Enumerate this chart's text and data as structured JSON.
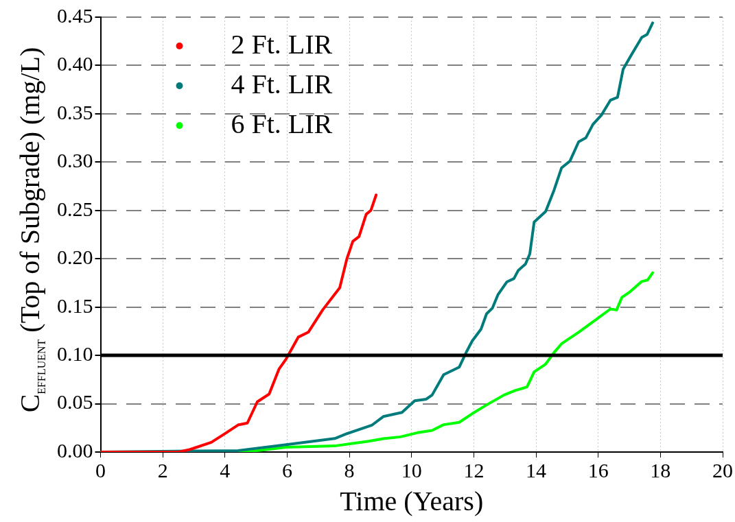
{
  "chart_data": {
    "type": "line",
    "xlabel": "Time (Years)",
    "ylabel": "C$_{EFFLUENT}$ (Top of Subgrade) (mg/L)",
    "xlim": [
      0,
      20
    ],
    "xticks": [
      0,
      2,
      4,
      6,
      8,
      10,
      12,
      14,
      16,
      18,
      20
    ],
    "ylim": [
      0,
      0.45
    ],
    "yticks": [
      {
        "value": 0,
        "label": "0.00"
      },
      {
        "value": 0.05,
        "label": "0.05"
      },
      {
        "value": 0.1,
        "label": "0.10"
      },
      {
        "value": 0.15,
        "label": "0.15"
      },
      {
        "value": 0.2,
        "label": "0.20"
      },
      {
        "value": 0.25,
        "label": "0.25"
      },
      {
        "value": 0.3,
        "label": "0.30"
      },
      {
        "value": 0.35,
        "label": "0.35"
      },
      {
        "value": 0.4,
        "label": "0.40"
      },
      {
        "value": 0.45,
        "label": "0.45"
      }
    ],
    "grid": true,
    "legend": "top left",
    "ref_lines": [
      {
        "axis": "y",
        "value": 0.1,
        "color": "#000000"
      }
    ],
    "series": [
      {
        "name": "2 Ft. LIR",
        "color": "#ff0000",
        "x": [
          0,
          2.5,
          2.86,
          3.56,
          3.95,
          4.42,
          4.72,
          5.04,
          5.42,
          5.74,
          5.97,
          6.36,
          6.68,
          7.14,
          7.69,
          7.92,
          8.11,
          8.31,
          8.54,
          8.69,
          8.86
        ],
        "values": [
          0,
          0,
          0.0025,
          0.01,
          0.018,
          0.028,
          0.03,
          0.052,
          0.06,
          0.086,
          0.0965,
          0.119,
          0.124,
          0.147,
          0.17,
          0.2,
          0.218,
          0.223,
          0.246,
          0.25,
          0.266
        ]
      },
      {
        "name": "4 Ft. LIR",
        "color": "#007b7b",
        "x": [
          0,
          4.42,
          5.97,
          7.53,
          7.92,
          8.72,
          9.09,
          9.69,
          10.1,
          10.47,
          10.66,
          11.03,
          11.53,
          11.77,
          11.95,
          12.23,
          12.41,
          12.6,
          12.78,
          13.06,
          13.29,
          13.43,
          13.66,
          13.8,
          13.94,
          14.31,
          14.58,
          14.82,
          15.09,
          15.37,
          15.6,
          15.83,
          16.11,
          16.39,
          16.62,
          16.8,
          17.03,
          17.4,
          17.57,
          17.75
        ],
        "values": [
          0,
          0.0015,
          0.0076,
          0.014,
          0.019,
          0.0277,
          0.0367,
          0.041,
          0.053,
          0.0547,
          0.059,
          0.08,
          0.0878,
          0.104,
          0.115,
          0.127,
          0.143,
          0.149,
          0.163,
          0.176,
          0.1795,
          0.188,
          0.1945,
          0.205,
          0.238,
          0.249,
          0.271,
          0.294,
          0.301,
          0.321,
          0.325,
          0.339,
          0.349,
          0.364,
          0.367,
          0.396,
          0.409,
          0.429,
          0.432,
          0.444
        ]
      },
      {
        "name": "6 Ft. LIR",
        "color": "#00ff00",
        "x": [
          0,
          4.8,
          5.97,
          7.53,
          8.62,
          9.09,
          9.64,
          10.19,
          10.66,
          11.03,
          11.53,
          11.95,
          12.41,
          12.97,
          13.34,
          13.71,
          13.94,
          14.31,
          14.58,
          14.82,
          15.37,
          15.93,
          16.39,
          16.59,
          16.76,
          17.03,
          17.4,
          17.59,
          17.75
        ],
        "values": [
          0,
          0.0005,
          0.005,
          0.0063,
          0.0112,
          0.0139,
          0.0157,
          0.02,
          0.0223,
          0.0283,
          0.0307,
          0.0397,
          0.0487,
          0.059,
          0.0638,
          0.0673,
          0.083,
          0.091,
          0.103,
          0.112,
          0.124,
          0.137,
          0.148,
          0.147,
          0.16,
          0.166,
          0.1765,
          0.178,
          0.1855
        ]
      }
    ]
  }
}
